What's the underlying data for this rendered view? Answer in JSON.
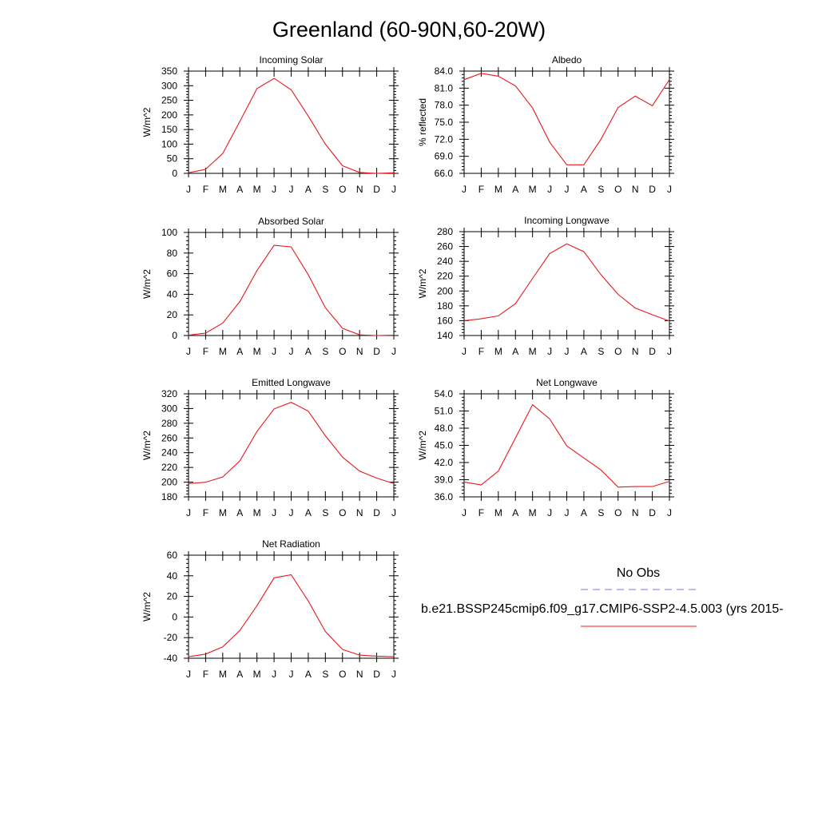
{
  "title": "Greenland (60-90N,60-20W)",
  "months": [
    "J",
    "F",
    "M",
    "A",
    "M",
    "J",
    "J",
    "A",
    "S",
    "O",
    "N",
    "D",
    "J"
  ],
  "colors": {
    "model_line": "#e8191f",
    "obs_line": "#7777ee"
  },
  "legend": {
    "obs_label": "No Obs",
    "model_label": "b.e21.BSSP245cmip6.f09_g17.CMIP6-SSP2-4.5.003 (yrs 2015-"
  },
  "chart_data": [
    {
      "type": "line",
      "title": "Incoming Solar",
      "ylabel": "W/m^2",
      "ylim": [
        0,
        350
      ],
      "yticks": [
        "0",
        "50",
        "100",
        "150",
        "200",
        "250",
        "300",
        "350"
      ],
      "categories": [
        "J",
        "F",
        "M",
        "A",
        "M",
        "J",
        "J",
        "A",
        "S",
        "O",
        "N",
        "D",
        "J"
      ],
      "values": [
        2,
        14,
        68,
        178,
        290,
        325,
        286,
        196,
        100,
        26,
        3,
        0,
        2
      ]
    },
    {
      "type": "line",
      "title": "Albedo",
      "ylabel": "% reflected",
      "ylim": [
        66,
        84
      ],
      "yticks": [
        "66.0",
        "69.0",
        "72.0",
        "75.0",
        "78.0",
        "81.0",
        "84.0"
      ],
      "categories": [
        "J",
        "F",
        "M",
        "A",
        "M",
        "J",
        "J",
        "A",
        "S",
        "O",
        "N",
        "D",
        "J"
      ],
      "values": [
        82.5,
        83.6,
        83.1,
        81.4,
        77.5,
        71.5,
        67.5,
        67.5,
        72.0,
        77.6,
        79.6,
        77.9,
        82.5
      ]
    },
    {
      "type": "line",
      "title": "Absorbed Solar",
      "ylabel": "W/m^2",
      "ylim": [
        0,
        100
      ],
      "yticks": [
        "0",
        "20",
        "40",
        "60",
        "80",
        "100"
      ],
      "categories": [
        "J",
        "F",
        "M",
        "A",
        "M",
        "J",
        "J",
        "A",
        "S",
        "O",
        "N",
        "D",
        "J"
      ],
      "values": [
        0.3,
        2.3,
        12,
        33,
        63,
        87.5,
        86,
        59,
        27,
        7,
        0.6,
        0,
        0.3
      ]
    },
    {
      "type": "line",
      "title": "Incoming Longwave",
      "ylabel": "W/m^2",
      "ylim": [
        140,
        280
      ],
      "yticks": [
        "140",
        "160",
        "180",
        "200",
        "220",
        "240",
        "260",
        "280"
      ],
      "categories": [
        "J",
        "F",
        "M",
        "A",
        "M",
        "J",
        "J",
        "A",
        "S",
        "O",
        "N",
        "D",
        "J"
      ],
      "values": [
        160,
        162.5,
        166.5,
        183,
        217,
        250.5,
        263.5,
        253,
        222,
        195.5,
        177,
        168,
        159.5
      ]
    },
    {
      "type": "line",
      "title": "Emitted Longwave",
      "ylabel": "W/m^2",
      "ylim": [
        180,
        320
      ],
      "yticks": [
        "180",
        "200",
        "220",
        "240",
        "260",
        "280",
        "300",
        "320"
      ],
      "categories": [
        "J",
        "F",
        "M",
        "A",
        "M",
        "J",
        "J",
        "A",
        "S",
        "O",
        "N",
        "D",
        "J"
      ],
      "values": [
        198,
        200,
        207,
        229,
        269,
        299.5,
        308.5,
        296.5,
        263,
        234,
        215,
        205.5,
        198
      ]
    },
    {
      "type": "line",
      "title": "Net Longwave",
      "ylabel": "W/m^2",
      "ylim": [
        36,
        54
      ],
      "yticks": [
        "36.0",
        "39.0",
        "42.0",
        "45.0",
        "48.0",
        "51.0",
        "54.0"
      ],
      "categories": [
        "J",
        "F",
        "M",
        "A",
        "M",
        "J",
        "J",
        "A",
        "S",
        "O",
        "N",
        "D",
        "J"
      ],
      "values": [
        38.6,
        38.1,
        40.5,
        46.3,
        52.1,
        49.6,
        44.9,
        42.8,
        40.7,
        37.7,
        37.8,
        37.8,
        38.7
      ]
    },
    {
      "type": "line",
      "title": "Net Radiation",
      "ylabel": "W/m^2",
      "ylim": [
        -40,
        60
      ],
      "yticks": [
        "-40",
        "-20",
        "0",
        "20",
        "40",
        "60"
      ],
      "categories": [
        "J",
        "F",
        "M",
        "A",
        "M",
        "J",
        "J",
        "A",
        "S",
        "O",
        "N",
        "D",
        "J"
      ],
      "values": [
        -38.5,
        -36,
        -29,
        -13,
        11,
        38,
        41,
        15.5,
        -14,
        -31.5,
        -37,
        -38,
        -38.5
      ]
    }
  ]
}
